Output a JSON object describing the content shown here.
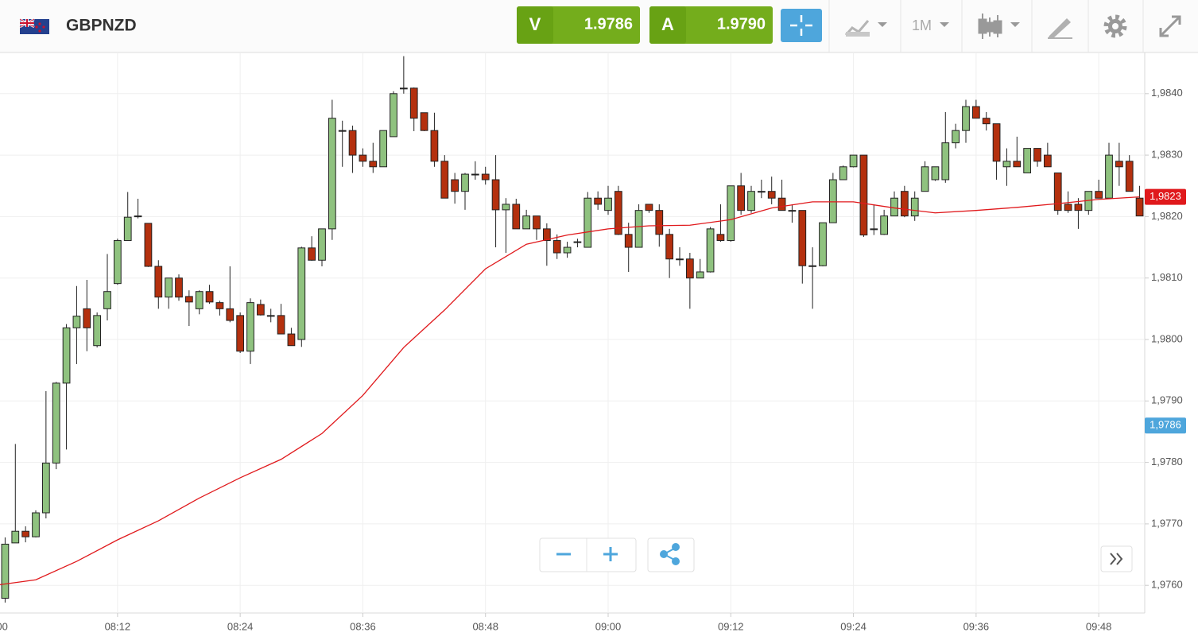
{
  "header": {
    "symbol": "GBPNZD",
    "sell": {
      "label": "V",
      "price": "1.9786"
    },
    "buy": {
      "label": "A",
      "price": "1.9790"
    },
    "timeframe": "1M"
  },
  "chart_data": {
    "type": "candlestick",
    "x": [
      "08:01",
      "08:02",
      "08:03",
      "08:04",
      "08:05",
      "08:06",
      "08:07",
      "08:08",
      "08:09",
      "08:10",
      "08:11",
      "08:12",
      "08:13",
      "08:14",
      "08:15",
      "08:16",
      "08:17",
      "08:18",
      "08:19",
      "08:20",
      "08:21",
      "08:22",
      "08:23",
      "08:24",
      "08:25",
      "08:26",
      "08:27",
      "08:28",
      "08:29",
      "08:30",
      "08:31",
      "08:32",
      "08:33",
      "08:34",
      "08:35",
      "08:36",
      "08:37",
      "08:38",
      "08:39",
      "08:40",
      "08:41",
      "08:42",
      "08:43",
      "08:44",
      "08:45",
      "08:46",
      "08:47",
      "08:48",
      "08:49",
      "08:50",
      "08:51",
      "08:52",
      "08:53",
      "08:54",
      "08:55",
      "08:56",
      "08:57",
      "08:58",
      "08:59",
      "09:00",
      "09:01",
      "09:02",
      "09:03",
      "09:04",
      "09:05",
      "09:06",
      "09:07",
      "09:08",
      "09:09",
      "09:10",
      "09:11",
      "09:12",
      "09:13",
      "09:14",
      "09:15",
      "09:16",
      "09:17",
      "09:18",
      "09:19",
      "09:20",
      "09:21",
      "09:22",
      "09:23",
      "09:24",
      "09:25",
      "09:26",
      "09:27",
      "09:28",
      "09:29",
      "09:30",
      "09:31",
      "09:32",
      "09:33",
      "09:34",
      "09:35",
      "09:36",
      "09:37",
      "09:38",
      "09:39",
      "09:40",
      "09:41",
      "09:42",
      "09:43",
      "09:44",
      "09:45",
      "09:46",
      "09:47",
      "09:48",
      "09:49",
      "09:50",
      "09:51",
      "09:52"
    ],
    "open": [
      1.97579,
      1.97669,
      1.97688,
      1.97679,
      1.97718,
      1.97799,
      1.97929,
      1.98019,
      1.9805,
      1.9799,
      1.9805,
      1.98091,
      1.98161,
      1.98201,
      1.98189,
      1.98119,
      1.98069,
      1.981,
      1.9807,
      1.9805,
      1.98078,
      1.9806,
      1.9805,
      1.98039,
      1.97981,
      1.98057,
      1.98039,
      1.98039,
      1.98009,
      1.98,
      1.98149,
      1.98129,
      1.9818,
      1.9834,
      1.9834,
      1.983,
      1.9829,
      1.98281,
      1.9833,
      1.98409,
      1.98409,
      1.98369,
      1.9834,
      1.9829,
      1.9826,
      1.98241,
      1.98269,
      1.98269,
      1.9826,
      1.98211,
      1.9822,
      1.9818,
      1.98201,
      1.9818,
      1.98161,
      1.98141,
      1.98159,
      1.9815,
      1.9823,
      1.9821,
      1.98241,
      1.98171,
      1.9815,
      1.9822,
      1.9821,
      1.98171,
      1.98131,
      1.98131,
      1.981,
      1.9811,
      1.98171,
      1.98161,
      1.9825,
      1.9821,
      1.98241,
      1.98241,
      1.9823,
      1.9821,
      1.9821,
      1.9812,
      1.9812,
      1.9819,
      1.9826,
      1.98281,
      1.983,
      1.9818,
      1.98171,
      1.98201,
      1.98241,
      1.98201,
      1.98241,
      1.9826,
      1.9826,
      1.9832,
      1.9834,
      1.98379,
      1.9836,
      1.98351,
      1.98281,
      1.9829,
      1.98271,
      1.98311,
      1.983,
      1.98271,
      1.9822,
      1.9822,
      1.9821,
      1.98241,
      1.9823,
      1.9829,
      1.9829,
      1.9823
    ],
    "high": [
      1.97678,
      1.9783,
      1.97696,
      1.97722,
      1.97916,
      1.97931,
      1.98025,
      1.98087,
      1.98097,
      1.98044,
      1.98139,
      1.98164,
      1.9824,
      1.98229,
      1.98189,
      1.98129,
      1.981,
      1.98106,
      1.9808,
      1.9808,
      1.98089,
      1.98063,
      1.98119,
      1.98044,
      1.98067,
      1.98065,
      1.9805,
      1.98058,
      1.98019,
      1.98151,
      1.98168,
      1.9818,
      1.9839,
      1.98356,
      1.98348,
      1.98311,
      1.9832,
      1.9834,
      1.98404,
      1.98461,
      1.9841,
      1.98369,
      1.98369,
      1.983,
      1.98271,
      1.98271,
      1.9829,
      1.98281,
      1.983,
      1.9823,
      1.98229,
      1.98211,
      1.98201,
      1.98189,
      1.98171,
      1.98159,
      1.98164,
      1.9824,
      1.98241,
      1.9825,
      1.9825,
      1.9819,
      1.9822,
      1.9822,
      1.9822,
      1.9818,
      1.9815,
      1.98141,
      1.98131,
      1.98183,
      1.9822,
      1.9825,
      1.98271,
      1.9825,
      1.9826,
      1.98265,
      1.9826,
      1.9822,
      1.9821,
      1.9815,
      1.9819,
      1.98271,
      1.98283,
      1.983,
      1.983,
      1.9822,
      1.98211,
      1.98241,
      1.9825,
      1.98241,
      1.9829,
      1.98281,
      1.9837,
      1.98351,
      1.9839,
      1.9839,
      1.9837,
      1.98351,
      1.98311,
      1.9833,
      1.98311,
      1.98311,
      1.9832,
      1.98271,
      1.98241,
      1.9823,
      1.98241,
      1.9826,
      1.9832,
      1.9832,
      1.983,
      1.9825
    ],
    "low": [
      1.97572,
      1.97669,
      1.9767,
      1.97678,
      1.97709,
      1.97789,
      1.97821,
      1.9796,
      1.97981,
      1.97987,
      1.98031,
      1.98089,
      1.98161,
      1.98197,
      1.98118,
      1.9805,
      1.9805,
      1.98063,
      1.98022,
      1.98041,
      1.98058,
      1.98039,
      1.98028,
      1.97978,
      1.9796,
      1.98039,
      1.98028,
      1.98009,
      1.9799,
      1.97988,
      1.98128,
      1.98119,
      1.98162,
      1.98281,
      1.98271,
      1.98281,
      1.98271,
      1.98281,
      1.9833,
      1.984,
      1.98339,
      1.98339,
      1.98281,
      1.9823,
      1.98221,
      1.98211,
      1.9826,
      1.98252,
      1.9815,
      1.98141,
      1.9818,
      1.9818,
      1.98162,
      1.9812,
      1.98131,
      1.98133,
      1.9815,
      1.9815,
      1.98211,
      1.98203,
      1.9817,
      1.9811,
      1.9815,
      1.98206,
      1.98151,
      1.981,
      1.9812,
      1.9805,
      1.981,
      1.98109,
      1.98159,
      1.98159,
      1.98203,
      1.98206,
      1.9823,
      1.9822,
      1.9821,
      1.9819,
      1.98091,
      1.9805,
      1.98119,
      1.9819,
      1.9826,
      1.9828,
      1.98167,
      1.9817,
      1.9817,
      1.98201,
      1.98199,
      1.98193,
      1.98241,
      1.98258,
      1.98255,
      1.98311,
      1.9832,
      1.9836,
      1.9834,
      1.9826,
      1.9825,
      1.98281,
      1.98271,
      1.98281,
      1.98281,
      1.98203,
      1.98206,
      1.9818,
      1.98203,
      1.9823,
      1.9823,
      1.9825,
      1.98241,
      1.98201
    ],
    "close": [
      1.97667,
      1.97688,
      1.97679,
      1.97718,
      1.97799,
      1.97929,
      1.98019,
      1.98038,
      1.98019,
      1.98039,
      1.98078,
      1.98161,
      1.98199,
      1.98201,
      1.98119,
      1.98069,
      1.981,
      1.98069,
      1.98061,
      1.98078,
      1.98061,
      1.9805,
      1.98031,
      1.97981,
      1.9806,
      1.9804,
      1.98039,
      1.98009,
      1.9799,
      1.98149,
      1.98129,
      1.9818,
      1.9836,
      1.98339,
      1.983,
      1.9829,
      1.98281,
      1.9834,
      1.984,
      1.98409,
      1.9836,
      1.9834,
      1.9829,
      1.9823,
      1.98241,
      1.98269,
      1.98269,
      1.9826,
      1.98211,
      1.9822,
      1.9818,
      1.98201,
      1.9818,
      1.98161,
      1.98141,
      1.9815,
      1.98159,
      1.9823,
      1.9822,
      1.9823,
      1.98171,
      1.9815,
      1.9821,
      1.9821,
      1.98171,
      1.98131,
      1.98131,
      1.981,
      1.9811,
      1.9818,
      1.98161,
      1.9825,
      1.9821,
      1.98241,
      1.98241,
      1.9823,
      1.9821,
      1.9821,
      1.9812,
      1.9812,
      1.9819,
      1.9826,
      1.98281,
      1.983,
      1.9817,
      1.9818,
      1.98201,
      1.9823,
      1.98201,
      1.9823,
      1.98281,
      1.98281,
      1.9832,
      1.9834,
      1.98379,
      1.9836,
      1.98351,
      1.9829,
      1.9829,
      1.98281,
      1.98311,
      1.9829,
      1.98281,
      1.9821,
      1.9821,
      1.9821,
      1.98241,
      1.9823,
      1.983,
      1.98281,
      1.98241,
      1.98201
    ],
    "up_color": "#8fc27f",
    "down_color": "#b4300e",
    "ma": {
      "color": "#e0191c",
      "x": [
        "08:00",
        "08:04",
        "08:08",
        "08:12",
        "08:16",
        "08:20",
        "08:24",
        "08:28",
        "08:32",
        "08:36",
        "08:40",
        "08:44",
        "08:48",
        "08:52",
        "08:56",
        "09:00",
        "09:04",
        "09:08",
        "09:12",
        "09:16",
        "09:20",
        "09:24",
        "09:28",
        "09:32",
        "09:36",
        "09:40",
        "09:44",
        "09:48",
        "09:52"
      ],
      "values": [
        1.976,
        1.97609,
        1.97639,
        1.97674,
        1.97705,
        1.97742,
        1.97775,
        1.97805,
        1.97847,
        1.97909,
        1.97987,
        1.98048,
        1.98115,
        1.98155,
        1.9817,
        1.9818,
        1.98185,
        1.98186,
        1.98195,
        1.98214,
        1.98224,
        1.98224,
        1.98214,
        1.98206,
        1.9821,
        1.98215,
        1.98221,
        1.98228,
        1.98232
      ],
      "last_label": "1,9823"
    },
    "price_marker": {
      "value": 1.9786,
      "label": "1,9786",
      "color": "#4ea6dc"
    },
    "xlim": [
      "08:00:30",
      "09:52:30"
    ],
    "xticks": [
      "08:00",
      "08:12",
      "08:24",
      "08:36",
      "08:48",
      "09:00",
      "09:12",
      "09:24",
      "09:36",
      "09:48"
    ],
    "ylim": [
      1.97555,
      1.98467
    ],
    "yticks": [
      {
        "value": 1.976,
        "label": "1,9760"
      },
      {
        "value": 1.977,
        "label": "1,9770"
      },
      {
        "value": 1.978,
        "label": "1,9780"
      },
      {
        "value": 1.979,
        "label": "1,9790"
      },
      {
        "value": 1.98,
        "label": "1,9800"
      },
      {
        "value": 1.981,
        "label": "1,9810"
      },
      {
        "value": 1.982,
        "label": "1,9820"
      },
      {
        "value": 1.983,
        "label": "1,9830"
      },
      {
        "value": 1.984,
        "label": "1,9840"
      }
    ],
    "grid": true
  }
}
